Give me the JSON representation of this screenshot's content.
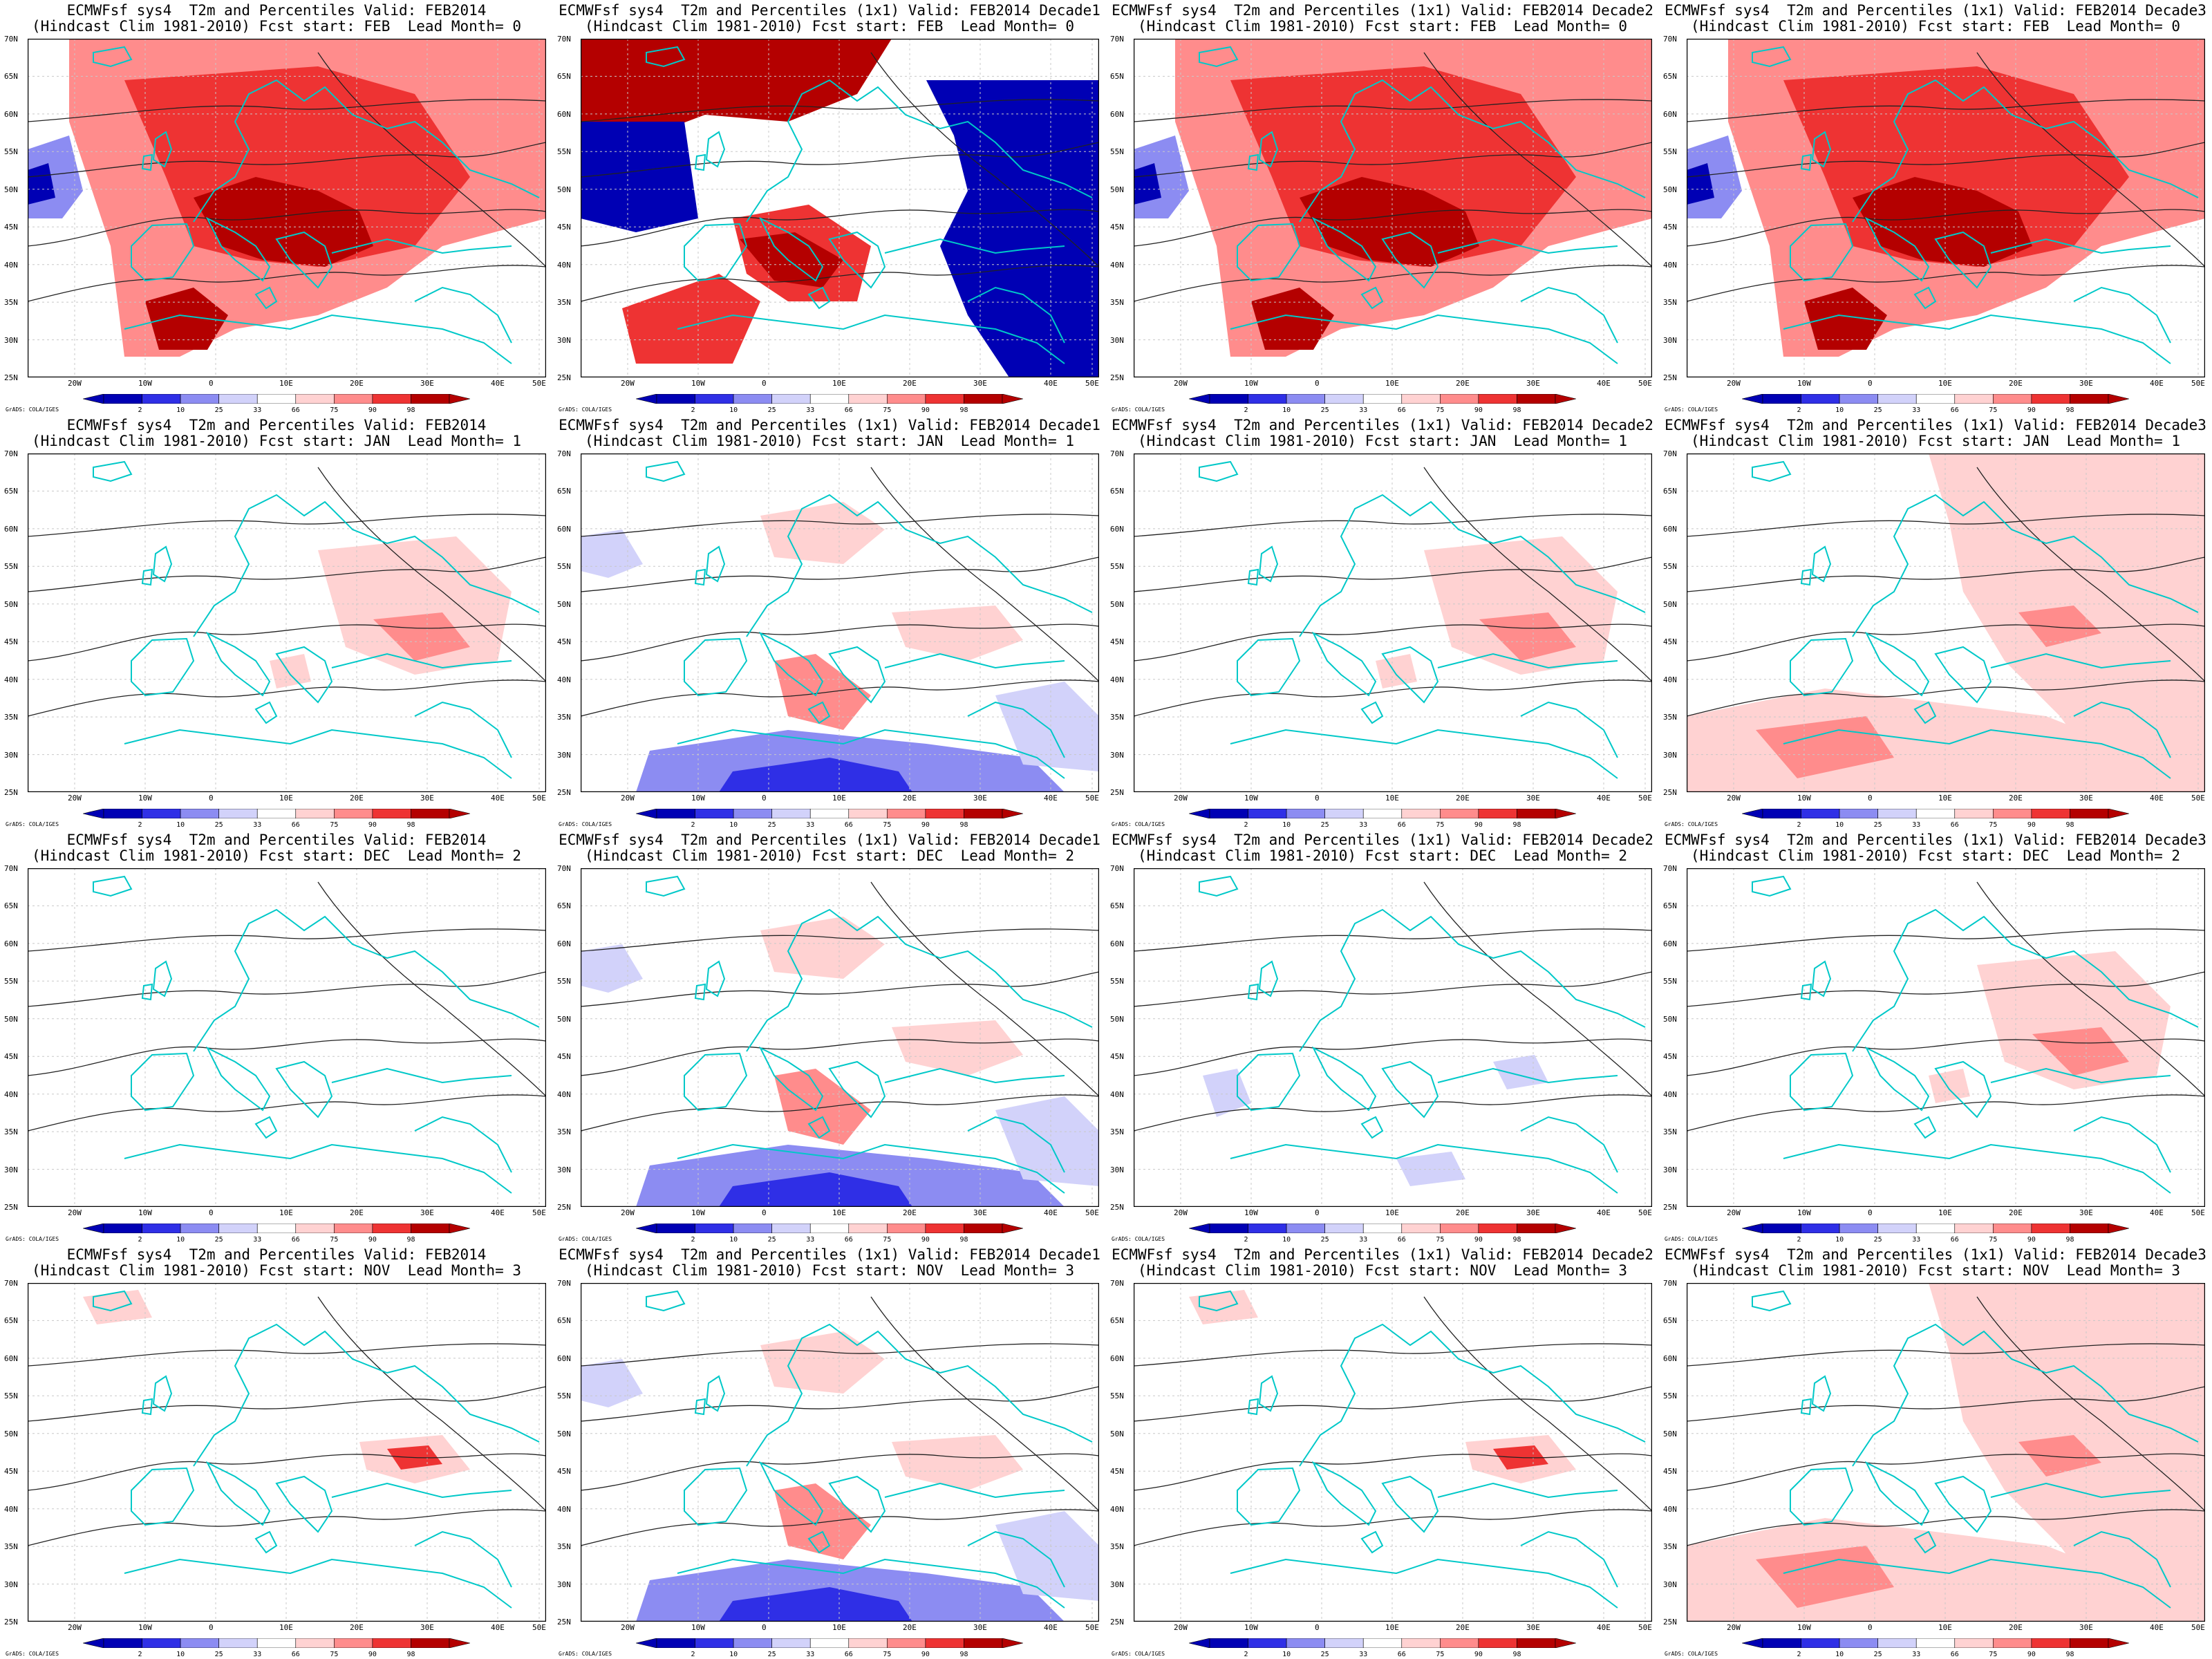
{
  "credit": "GrADS: COLA/IGES",
  "lat_labels": [
    "70N",
    "65N",
    "60N",
    "55N",
    "50N",
    "45N",
    "40N",
    "35N",
    "30N",
    "25N"
  ],
  "lon_labels": [
    "20W",
    "10W",
    "0",
    "10E",
    "20E",
    "30E",
    "40E",
    "50E"
  ],
  "colorbar": {
    "labels": [
      "2",
      "10",
      "25",
      "33",
      "66",
      "75",
      "90",
      "98"
    ],
    "colors": [
      "#0000b4",
      "#2f2fe6",
      "#8c8cf2",
      "#d2d2fa",
      "#ffffff",
      "#ffd2d2",
      "#ff8c8c",
      "#ee3333",
      "#b40000"
    ]
  },
  "panels": [
    {
      "line1": "ECMWFsf sys4  T2m and Percentiles Valid: FEB2014",
      "line2": "(Hindcast Clim 1981-2010) Fcst start: FEB  Lead Month= 0",
      "pattern": "warm-strong"
    },
    {
      "line1": "ECMWFsf sys4  T2m and Percentiles (1x1) Valid: FEB2014 Decade1",
      "line2": "(Hindcast Clim 1981-2010) Fcst start: FEB  Lead Month= 0",
      "pattern": "warm-cold-east"
    },
    {
      "line1": "ECMWFsf sys4  T2m and Percentiles (1x1) Valid: FEB2014 Decade2",
      "line2": "(Hindcast Clim 1981-2010) Fcst start: FEB  Lead Month= 0",
      "pattern": "warm-strong"
    },
    {
      "line1": "ECMWFsf sys4  T2m and Percentiles (1x1) Valid: FEB2014 Decade3",
      "line2": "(Hindcast Clim 1981-2010) Fcst start: FEB  Lead Month= 0",
      "pattern": "warm-strong"
    },
    {
      "line1": "ECMWFsf sys4  T2m and Percentiles Valid: FEB2014",
      "line2": "(Hindcast Clim 1981-2010) Fcst start: JAN  Lead Month= 1",
      "pattern": "warm-light"
    },
    {
      "line1": "ECMWFsf sys4  T2m and Percentiles (1x1) Valid: FEB2014 Decade1",
      "line2": "(Hindcast Clim 1981-2010) Fcst start: JAN  Lead Month= 1",
      "pattern": "mixed-cold-south"
    },
    {
      "line1": "ECMWFsf sys4  T2m and Percentiles (1x1) Valid: FEB2014 Decade2",
      "line2": "(Hindcast Clim 1981-2010) Fcst start: JAN  Lead Month= 1",
      "pattern": "warm-light"
    },
    {
      "line1": "ECMWFsf sys4  T2m and Percentiles (1x1) Valid: FEB2014 Decade3",
      "line2": "(Hindcast Clim 1981-2010) Fcst start: JAN  Lead Month= 1",
      "pattern": "warm-wide"
    },
    {
      "line1": "ECMWFsf sys4  T2m and Percentiles Valid: FEB2014",
      "line2": "(Hindcast Clim 1981-2010) Fcst start: DEC  Lead Month= 2",
      "pattern": "none"
    },
    {
      "line1": "ECMWFsf sys4  T2m and Percentiles (1x1) Valid: FEB2014 Decade1",
      "line2": "(Hindcast Clim 1981-2010) Fcst start: DEC  Lead Month= 2",
      "pattern": "mixed-cold-south"
    },
    {
      "line1": "ECMWFsf sys4  T2m and Percentiles (1x1) Valid: FEB2014 Decade2",
      "line2": "(Hindcast Clim 1981-2010) Fcst start: DEC  Lead Month= 2",
      "pattern": "cold-light"
    },
    {
      "line1": "ECMWFsf sys4  T2m and Percentiles (1x1) Valid: FEB2014 Decade3",
      "line2": "(Hindcast Clim 1981-2010) Fcst start: DEC  Lead Month= 2",
      "pattern": "warm-light"
    },
    {
      "line1": "ECMWFsf sys4  T2m and Percentiles Valid: FEB2014",
      "line2": "(Hindcast Clim 1981-2010) Fcst start: NOV  Lead Month= 3",
      "pattern": "warm-spot"
    },
    {
      "line1": "ECMWFsf sys4  T2m and Percentiles (1x1) Valid: FEB2014 Decade1",
      "line2": "(Hindcast Clim 1981-2010) Fcst start: NOV  Lead Month= 3",
      "pattern": "mixed-cold-south"
    },
    {
      "line1": "ECMWFsf sys4  T2m and Percentiles (1x1) Valid: FEB2014 Decade2",
      "line2": "(Hindcast Clim 1981-2010) Fcst start: NOV  Lead Month= 3",
      "pattern": "warm-spot"
    },
    {
      "line1": "ECMWFsf sys4  T2m and Percentiles (1x1) Valid: FEB2014 Decade3",
      "line2": "(Hindcast Clim 1981-2010) Fcst start: NOV  Lead Month= 3",
      "pattern": "warm-wide"
    }
  ]
}
